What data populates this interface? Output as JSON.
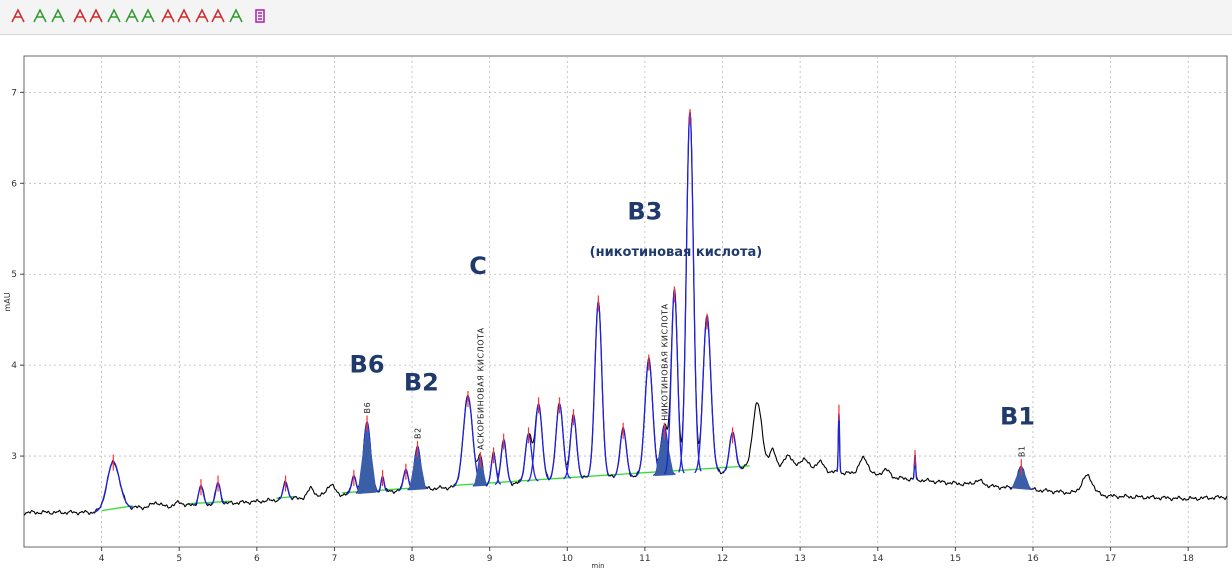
{
  "toolbar": {
    "icons": [
      {
        "name": "peak-cursor-icon"
      },
      {
        "name": "peak-add-icon"
      },
      {
        "name": "peak-add-alt-icon"
      },
      {
        "name": "peak-baseline-icon"
      },
      {
        "name": "peak-delete-icon"
      },
      {
        "name": "peak-split-icon"
      },
      {
        "name": "peak-integrate-icon"
      },
      {
        "name": "peak-integrate-alt-icon"
      },
      {
        "name": "peak-manual-icon"
      },
      {
        "name": "peak-manual-alt-icon"
      },
      {
        "name": "peak-remove-icon"
      },
      {
        "name": "peak-remove-all-icon"
      },
      {
        "name": "peak-tangent-icon"
      },
      {
        "name": "report-icon"
      }
    ],
    "colors": {
      "red": "#cc2a2a",
      "green": "#2e9a2e",
      "magenta": "#b01cb0"
    }
  },
  "chart_data": {
    "type": "line",
    "title": "",
    "xlabel": "min",
    "ylabel": "mAU",
    "xlim": [
      3.0,
      18.5
    ],
    "ylim": [
      2.0,
      7.4
    ],
    "x_ticks": [
      "4",
      "5",
      "6",
      "7",
      "8",
      "9",
      "10",
      "11",
      "12",
      "13",
      "14",
      "15",
      "16",
      "17",
      "18"
    ],
    "y_ticks": [
      "3",
      "4",
      "5",
      "6",
      "7"
    ],
    "grid": true,
    "colors": {
      "trace": "#000000",
      "fit": "#2020e0",
      "baseline": "#33dd33",
      "peak_marker": "#ff3030",
      "filled_peak": "#3a5ea8",
      "label": "#1f3a6b"
    },
    "baseline_value": 2.38,
    "peaks": [
      {
        "rt": 4.15,
        "height": 2.95,
        "width": 0.08,
        "base": 2.42,
        "label": ""
      },
      {
        "rt": 5.28,
        "height": 2.68,
        "width": 0.03,
        "base": 2.47,
        "label": ""
      },
      {
        "rt": 5.5,
        "height": 2.72,
        "width": 0.03,
        "base": 2.49,
        "label": ""
      },
      {
        "rt": 6.37,
        "height": 2.72,
        "width": 0.03,
        "base": 2.53,
        "label": ""
      },
      {
        "rt": 7.25,
        "height": 2.78,
        "width": 0.03,
        "base": 2.58,
        "label": ""
      },
      {
        "rt": 7.42,
        "height": 3.38,
        "width": 0.045,
        "base": 2.6,
        "label": "B6",
        "filled": true
      },
      {
        "rt": 7.62,
        "height": 2.78,
        "width": 0.02,
        "base": 2.61,
        "label": ""
      },
      {
        "rt": 7.92,
        "height": 2.85,
        "width": 0.03,
        "base": 2.62,
        "label": ""
      },
      {
        "rt": 8.07,
        "height": 3.1,
        "width": 0.04,
        "base": 2.63,
        "label": "B2",
        "filled": true
      },
      {
        "rt": 8.72,
        "height": 3.65,
        "width": 0.06,
        "base": 2.66,
        "label": ""
      },
      {
        "rt": 8.88,
        "height": 2.98,
        "width": 0.03,
        "base": 2.67,
        "label": "АСКОРБИНОВАЯ КИСЛОТА",
        "filled": true
      },
      {
        "rt": 9.05,
        "height": 3.03,
        "width": 0.03,
        "base": 2.69,
        "label": ""
      },
      {
        "rt": 9.18,
        "height": 3.18,
        "width": 0.035,
        "base": 2.7,
        "label": ""
      },
      {
        "rt": 9.5,
        "height": 3.25,
        "width": 0.04,
        "base": 2.72,
        "label": ""
      },
      {
        "rt": 9.63,
        "height": 3.58,
        "width": 0.045,
        "base": 2.73,
        "label": ""
      },
      {
        "rt": 9.9,
        "height": 3.58,
        "width": 0.045,
        "base": 2.75,
        "label": ""
      },
      {
        "rt": 10.08,
        "height": 3.45,
        "width": 0.04,
        "base": 2.76,
        "label": ""
      },
      {
        "rt": 10.4,
        "height": 4.7,
        "width": 0.045,
        "base": 2.77,
        "label": ""
      },
      {
        "rt": 10.72,
        "height": 3.3,
        "width": 0.04,
        "base": 2.77,
        "label": ""
      },
      {
        "rt": 11.05,
        "height": 4.05,
        "width": 0.05,
        "base": 2.77,
        "label": ""
      },
      {
        "rt": 11.25,
        "height": 3.3,
        "width": 0.045,
        "base": 2.77,
        "label": "НИКОТИНОВАЯ КИСЛОТА",
        "filled": true
      },
      {
        "rt": 11.38,
        "height": 4.8,
        "width": 0.04,
        "base": 2.77,
        "label": ""
      },
      {
        "rt": 11.58,
        "height": 6.75,
        "width": 0.045,
        "base": 2.77,
        "label": ""
      },
      {
        "rt": 11.8,
        "height": 4.5,
        "width": 0.05,
        "base": 2.77,
        "label": ""
      },
      {
        "rt": 12.13,
        "height": 3.25,
        "width": 0.04,
        "base": 2.83,
        "label": ""
      },
      {
        "rt": 13.5,
        "height": 3.5,
        "width": 0.008,
        "base": 2.85,
        "label": ""
      },
      {
        "rt": 14.48,
        "height": 3.0,
        "width": 0.008,
        "base": 2.73,
        "label": ""
      },
      {
        "rt": 15.85,
        "height": 2.9,
        "width": 0.045,
        "base": 2.66,
        "label": "B1",
        "filled": true
      }
    ],
    "extra_bumps": [
      {
        "rt": 12.45,
        "height": 0.7,
        "width": 0.06
      },
      {
        "rt": 12.65,
        "height": 0.2,
        "width": 0.04
      },
      {
        "rt": 12.85,
        "height": 0.15,
        "width": 0.05
      },
      {
        "rt": 13.05,
        "height": 0.12,
        "width": 0.05
      },
      {
        "rt": 13.25,
        "height": 0.1,
        "width": 0.05
      },
      {
        "rt": 13.82,
        "height": 0.18,
        "width": 0.06
      },
      {
        "rt": 14.1,
        "height": 0.08,
        "width": 0.05
      },
      {
        "rt": 16.7,
        "height": 0.2,
        "width": 0.07
      },
      {
        "rt": 6.7,
        "height": 0.1,
        "width": 0.04
      },
      {
        "rt": 6.95,
        "height": 0.12,
        "width": 0.05
      },
      {
        "rt": 4.7,
        "height": 0.05,
        "width": 0.05
      },
      {
        "rt": 5.0,
        "height": 0.04,
        "width": 0.05
      },
      {
        "rt": 15.3,
        "height": 0.05,
        "width": 0.06
      }
    ],
    "baseline_curve": [
      [
        3.0,
        2.38
      ],
      [
        4.0,
        2.38
      ],
      [
        4.3,
        2.43
      ],
      [
        5.0,
        2.45
      ],
      [
        6.0,
        2.5
      ],
      [
        7.0,
        2.57
      ],
      [
        8.0,
        2.63
      ],
      [
        9.0,
        2.68
      ],
      [
        10.0,
        2.75
      ],
      [
        11.0,
        2.78
      ],
      [
        12.0,
        2.82
      ],
      [
        12.4,
        2.88
      ],
      [
        13.0,
        2.86
      ],
      [
        14.0,
        2.78
      ],
      [
        15.0,
        2.7
      ],
      [
        16.0,
        2.63
      ],
      [
        17.0,
        2.56
      ],
      [
        18.0,
        2.53
      ],
      [
        18.5,
        2.55
      ]
    ],
    "annotations": [
      {
        "text": "B6",
        "x": 7.42,
        "y": 3.92,
        "size": "large"
      },
      {
        "text": "B2",
        "x": 8.12,
        "y": 3.72,
        "size": "large"
      },
      {
        "text": "C",
        "x": 8.85,
        "y": 5.0,
        "size": "large"
      },
      {
        "text": "B3",
        "x": 11.0,
        "y": 5.6,
        "size": "large"
      },
      {
        "text": "(никотиновая кислота)",
        "x": 11.4,
        "y": 5.2,
        "size": "medium"
      },
      {
        "text": "B1",
        "x": 15.8,
        "y": 3.35,
        "size": "large"
      }
    ]
  }
}
